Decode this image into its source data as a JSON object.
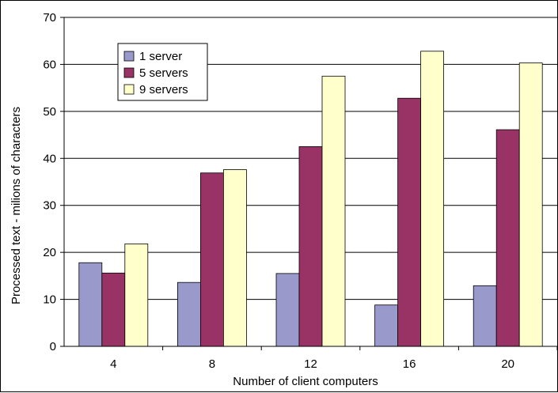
{
  "chart_data": {
    "type": "bar",
    "xlabel": "Number of client computers",
    "ylabel": "Processed text - milions of characters",
    "categories": [
      "4",
      "8",
      "12",
      "16",
      "20"
    ],
    "series": [
      {
        "name": "1 server",
        "color": "#9999cc",
        "values": [
          17.8,
          13.6,
          15.5,
          8.8,
          12.9
        ]
      },
      {
        "name": "5 servers",
        "color": "#993366",
        "values": [
          15.6,
          36.9,
          42.5,
          52.8,
          46.1
        ]
      },
      {
        "name": "9 servers",
        "color": "#ffffcc",
        "values": [
          21.8,
          37.6,
          57.5,
          62.8,
          60.3
        ]
      }
    ],
    "ylim": [
      0,
      70
    ],
    "yticks": [
      "0",
      "10",
      "20",
      "30",
      "40",
      "50",
      "60",
      "70"
    ],
    "grid": true,
    "legend_position": "top-left"
  }
}
